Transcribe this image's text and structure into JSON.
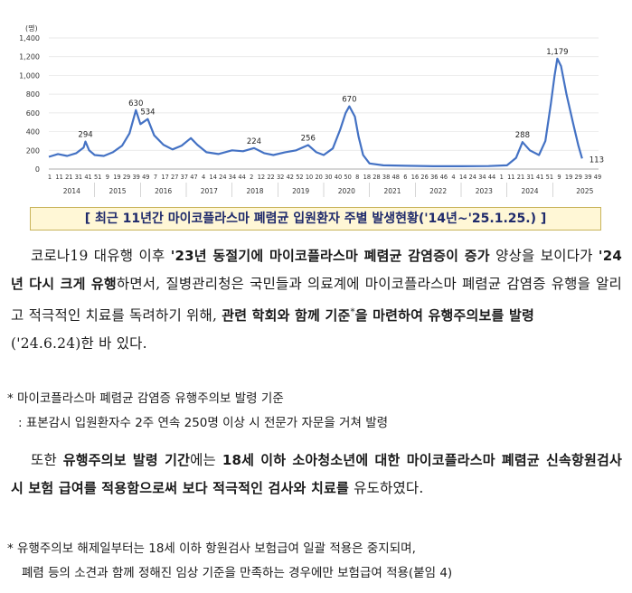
{
  "chart_data": {
    "type": "line",
    "unit_label": "(명)",
    "ylim": [
      0,
      1400
    ],
    "y_ticks": [
      "0",
      "200",
      "400",
      "600",
      "800",
      "1,000",
      "1,200",
      "1,400"
    ],
    "x_week_labels": [
      "1",
      "11",
      "21",
      "31",
      "41",
      "51",
      "9",
      "19",
      "29",
      "39",
      "49",
      "7",
      "17",
      "27",
      "37",
      "47",
      "4",
      "14",
      "24",
      "34",
      "44",
      "2",
      "12",
      "22",
      "32",
      "42",
      "52",
      "10",
      "20",
      "30",
      "40",
      "50",
      "8",
      "18",
      "28",
      "38",
      "48",
      "6",
      "16",
      "26",
      "36",
      "46",
      "4",
      "14",
      "24",
      "34",
      "44",
      "1",
      "11",
      "21",
      "31",
      "41",
      "51",
      "9",
      "19",
      "29",
      "39",
      "49"
    ],
    "years": [
      "2014",
      "2015",
      "2016",
      "2017",
      "2018",
      "2019",
      "2020",
      "2021",
      "2022",
      "2023",
      "2024",
      "2025"
    ],
    "annotations": [
      {
        "label": "294",
        "x": 40,
        "y": 294
      },
      {
        "label": "630",
        "x": 95,
        "y": 630
      },
      {
        "label": "534",
        "x": 108,
        "y": 534
      },
      {
        "label": "224",
        "x": 224,
        "y": 224
      },
      {
        "label": "256",
        "x": 283,
        "y": 256
      },
      {
        "label": "670",
        "x": 328,
        "y": 670
      },
      {
        "label": "288",
        "x": 517,
        "y": 288
      },
      {
        "label": "1,179",
        "x": 555,
        "y": 1179
      },
      {
        "label": "113",
        "x": 582,
        "y": 113
      }
    ],
    "series": [
      {
        "values": [
          [
            0,
            130
          ],
          [
            10,
            160
          ],
          [
            20,
            140
          ],
          [
            30,
            170
          ],
          [
            38,
            230
          ],
          [
            40,
            294
          ],
          [
            44,
            200
          ],
          [
            50,
            150
          ],
          [
            60,
            140
          ],
          [
            70,
            180
          ],
          [
            80,
            250
          ],
          [
            88,
            380
          ],
          [
            95,
            630
          ],
          [
            100,
            480
          ],
          [
            108,
            534
          ],
          [
            115,
            360
          ],
          [
            125,
            260
          ],
          [
            135,
            210
          ],
          [
            145,
            250
          ],
          [
            155,
            330
          ],
          [
            162,
            260
          ],
          [
            172,
            180
          ],
          [
            185,
            160
          ],
          [
            200,
            200
          ],
          [
            212,
            190
          ],
          [
            224,
            224
          ],
          [
            235,
            170
          ],
          [
            245,
            150
          ],
          [
            258,
            180
          ],
          [
            270,
            200
          ],
          [
            283,
            256
          ],
          [
            292,
            180
          ],
          [
            300,
            150
          ],
          [
            310,
            220
          ],
          [
            318,
            420
          ],
          [
            324,
            600
          ],
          [
            328,
            670
          ],
          [
            334,
            560
          ],
          [
            338,
            350
          ],
          [
            343,
            150
          ],
          [
            350,
            60
          ],
          [
            365,
            40
          ],
          [
            390,
            35
          ],
          [
            420,
            30
          ],
          [
            450,
            30
          ],
          [
            480,
            32
          ],
          [
            500,
            40
          ],
          [
            510,
            120
          ],
          [
            517,
            288
          ],
          [
            525,
            200
          ],
          [
            535,
            150
          ],
          [
            542,
            300
          ],
          [
            548,
            700
          ],
          [
            552,
            1000
          ],
          [
            555,
            1179
          ],
          [
            559,
            1100
          ],
          [
            565,
            800
          ],
          [
            572,
            500
          ],
          [
            578,
            250
          ],
          [
            582,
            113
          ]
        ]
      }
    ]
  },
  "caption": "[ 최근 11년간 마이코플라스마 폐렴균 입원환자 주별 발생현황('14년~'25.1.25.) ]",
  "para1": {
    "p1": "코로나19 대유행 이후 ",
    "b1": "'23년 동절기에 마이코플라스마 폐렴균 감염증이 증가",
    "p2": " 양상을 보이다가 ",
    "b2": "'24년 다시 크게 유행",
    "p3": "하면서, 질병관리청은 국민들과 의료계에 마이코플라스마 폐렴균 감염증 유행을 알리고 적극적인 치료를 독려하기 위해, ",
    "b3": "관련 학회와 함께 기준",
    "sup": "*",
    "b4": "을 마련하여 유행주의보를 발령",
    "p4": "('24.6.24)한 바 있다."
  },
  "note1": {
    "line1": "* 마이코플라스마 폐렴균 감염증 유행주의보 발령 기준",
    "line2": ": 표본감시 입원환자수 2주 연속 250명 이상 시 전문가 자문을 거쳐 발령"
  },
  "para2": {
    "p1": "또한 ",
    "b1": "유행주의보 발령 기간",
    "p2": "에는 ",
    "b2": "18세 이하 소아청소년에 대한 마이코플라스마 폐렴균 신속항원검사 시 보험 급여를 적용함으로써 보다 적극적인 검사와 치료를",
    "p3": " 유도하였다."
  },
  "note2": {
    "line1": "* 유행주의보 해제일부터는 18세 이하 항원검사 보험급여 일괄 적용은 중지되며,",
    "line2": "폐렴 등의 소견과 함께 정해진 임상 기준을 만족하는 경우에만 보험급여 적용(붙임 4)"
  }
}
